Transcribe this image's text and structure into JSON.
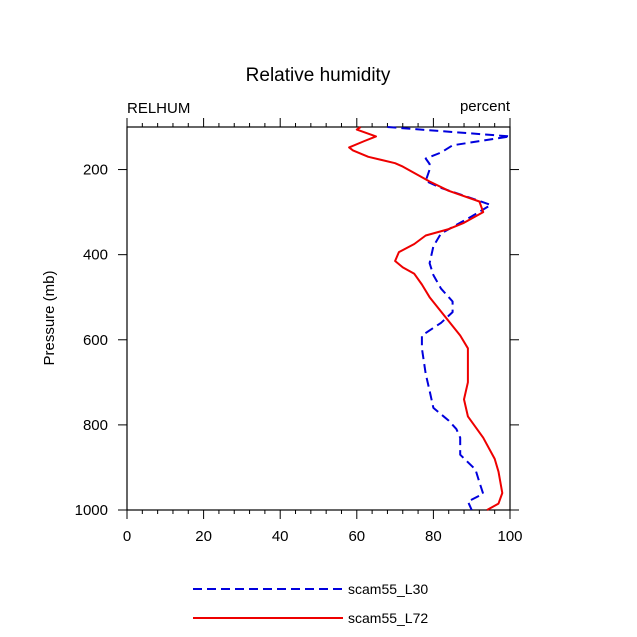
{
  "chart_data": {
    "type": "line",
    "title": "Relative humidity",
    "left_label": "RELHUM",
    "right_label": "percent",
    "xlabel": "",
    "ylabel": "Pressure (mb)",
    "xlim": [
      0,
      100
    ],
    "ylim": [
      100,
      1000
    ],
    "y_inverted": true,
    "x_ticks": [
      0,
      20,
      40,
      60,
      80,
      100
    ],
    "y_ticks": [
      200,
      400,
      600,
      800,
      1000
    ],
    "legend_position": "bottom",
    "series": [
      {
        "name": "scam55_L30",
        "color": "#0000dd",
        "style": "dashed",
        "points": [
          [
            68,
            100
          ],
          [
            100,
            122
          ],
          [
            85,
            143
          ],
          [
            82,
            160
          ],
          [
            78,
            174
          ],
          [
            79,
            187
          ],
          [
            79,
            200
          ],
          [
            78,
            227
          ],
          [
            82,
            243
          ],
          [
            95,
            283
          ],
          [
            90,
            310
          ],
          [
            82,
            350
          ],
          [
            80,
            380
          ],
          [
            79,
            420
          ],
          [
            80,
            448
          ],
          [
            82,
            480
          ],
          [
            85,
            510
          ],
          [
            85,
            535
          ],
          [
            82,
            560
          ],
          [
            77,
            590
          ],
          [
            77,
            620
          ],
          [
            78,
            680
          ],
          [
            79,
            720
          ],
          [
            80,
            760
          ],
          [
            84,
            790
          ],
          [
            86,
            810
          ],
          [
            87,
            830
          ],
          [
            87,
            845
          ],
          [
            87,
            870
          ],
          [
            91,
            905
          ],
          [
            92,
            935
          ],
          [
            93,
            962
          ],
          [
            89,
            980
          ],
          [
            90,
            1000
          ]
        ]
      },
      {
        "name": "scam55_L72",
        "color": "#ee0000",
        "style": "solid",
        "points": [
          [
            61,
            100
          ],
          [
            60,
            106
          ],
          [
            65,
            122
          ],
          [
            62,
            133
          ],
          [
            58,
            148
          ],
          [
            59,
            155
          ],
          [
            63,
            170
          ],
          [
            70,
            185
          ],
          [
            72,
            193
          ],
          [
            75,
            208
          ],
          [
            79,
            228
          ],
          [
            84,
            250
          ],
          [
            92,
            275
          ],
          [
            93,
            300
          ],
          [
            88,
            325
          ],
          [
            84,
            340
          ],
          [
            78,
            355
          ],
          [
            75,
            375
          ],
          [
            71,
            394
          ],
          [
            70,
            415
          ],
          [
            72,
            430
          ],
          [
            75,
            445
          ],
          [
            77,
            470
          ],
          [
            79,
            500
          ],
          [
            83,
            545
          ],
          [
            87,
            590
          ],
          [
            89,
            620
          ],
          [
            89,
            640
          ],
          [
            89,
            700
          ],
          [
            88,
            740
          ],
          [
            89,
            780
          ],
          [
            93,
            830
          ],
          [
            96,
            880
          ],
          [
            97,
            910
          ],
          [
            98,
            960
          ],
          [
            97,
            985
          ],
          [
            94,
            1000
          ]
        ]
      }
    ]
  }
}
